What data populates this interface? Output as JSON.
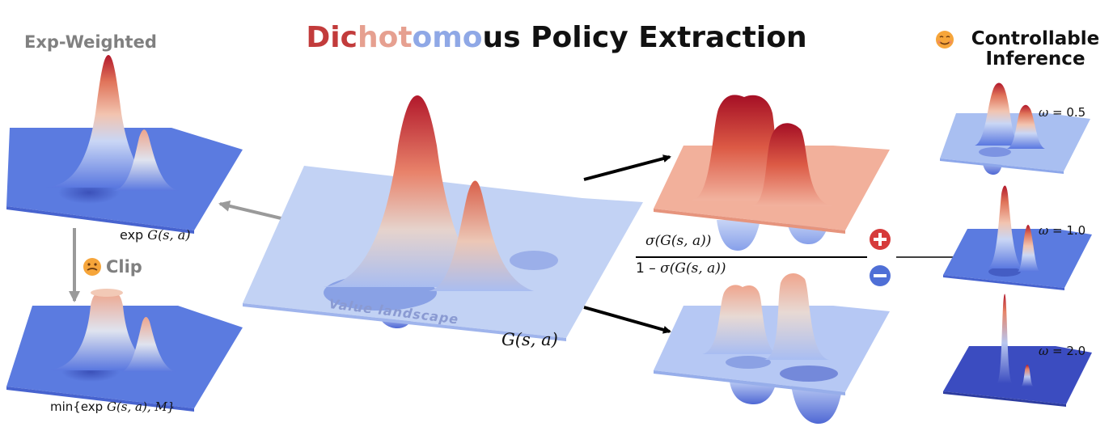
{
  "title": {
    "part1": "Dic",
    "part2": "hot",
    "part3": "omo",
    "part4": "us Policy Extraction"
  },
  "left_panel": {
    "header": "Exp-Weighted",
    "top_caption_prefix": "exp ",
    "top_caption_math": "G(s, a)",
    "clip_label": "Clip",
    "clip_emoji_icon": "grimacing-face-icon",
    "bottom_caption_prefix": "min{exp ",
    "bottom_caption_math": "G(s, a)",
    "bottom_caption_suffix": ", M}"
  },
  "center": {
    "plane_label": "Value landscape",
    "caption": "G(s, a)"
  },
  "split": {
    "positive_formula_sigma": "σ",
    "positive_formula_arg": "(G(s, a))",
    "negative_formula_prefix": "1 – ",
    "negative_formula_sigma": "σ",
    "negative_formula_arg": "(G(s, a))",
    "plus_icon": "plus-circle-icon",
    "minus_icon": "minus-circle-icon"
  },
  "right_panel": {
    "header_line1": "Controllable",
    "header_line2": "Inference",
    "header_emoji_icon": "smiling-face-icon",
    "omegas": [
      {
        "symbol": "ω",
        "value": "= 0.5"
      },
      {
        "symbol": "ω",
        "value": "= 1.0"
      },
      {
        "symbol": "ω",
        "value": "= 2.0"
      }
    ]
  },
  "colors": {
    "red": "#b2182b",
    "blue_dark": "#3b4cc0",
    "blue_light": "#c6d5f5",
    "salmon": "#f0b2a0",
    "gray_arrow": "#9a9a9a",
    "plus_red": "#d63b3b",
    "minus_blue": "#4f6fd6"
  }
}
